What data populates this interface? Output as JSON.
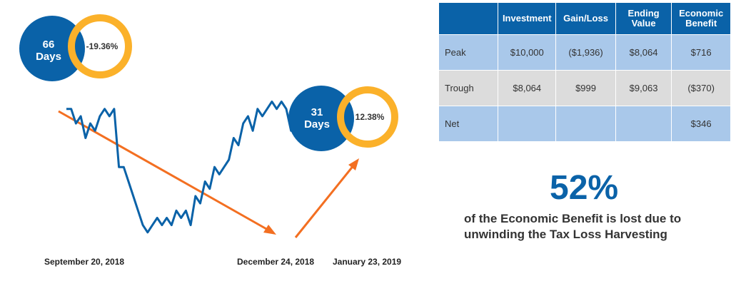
{
  "chart_data": {
    "type": "line",
    "series": [
      {
        "values": [
          96,
          96,
          94,
          95,
          92,
          94,
          93,
          95,
          96,
          95,
          96,
          88,
          88,
          86,
          84,
          82,
          80,
          79,
          80,
          81,
          80,
          81,
          80,
          82,
          81,
          82,
          80,
          84,
          83,
          86,
          85,
          88,
          87,
          88,
          89,
          92,
          91,
          94,
          95,
          93,
          96,
          95,
          96,
          97,
          96,
          97,
          96,
          93,
          96,
          97,
          98,
          97,
          96,
          93,
          92,
          95,
          97,
          98,
          96,
          92
        ]
      }
    ],
    "x_labels": [
      "September 20, 2018",
      "December 24, 2018",
      "January 23, 2019"
    ],
    "callouts": [
      {
        "days_number": "66",
        "days_label": "Days",
        "return": "-19.36%"
      },
      {
        "days_number": "31",
        "days_label": "Days",
        "return": "12.38%"
      }
    ]
  },
  "table": {
    "headers": [
      "",
      "Investment",
      "Gain/Loss",
      "Ending Value",
      "Economic Benefit"
    ],
    "rows": [
      {
        "label": "Peak",
        "investment": "$10,000",
        "gain_loss": "($1,936)",
        "ending_value": "$8,064",
        "economic_benefit": "$716"
      },
      {
        "label": "Trough",
        "investment": "$8,064",
        "gain_loss": "$999",
        "ending_value": "$9,063",
        "economic_benefit": "($370)"
      },
      {
        "label": "Net",
        "investment": "",
        "gain_loss": "",
        "ending_value": "",
        "economic_benefit": "$346"
      }
    ]
  },
  "highlight": {
    "value": "52%",
    "caption": "of the Economic Benefit is lost due to unwinding the Tax Loss Harvesting"
  },
  "colors": {
    "line": "#0a62a8",
    "arrow": "#f36f21",
    "ring": "#fbb12a",
    "overlap": "#f36f21",
    "header": "#0a62a8"
  }
}
